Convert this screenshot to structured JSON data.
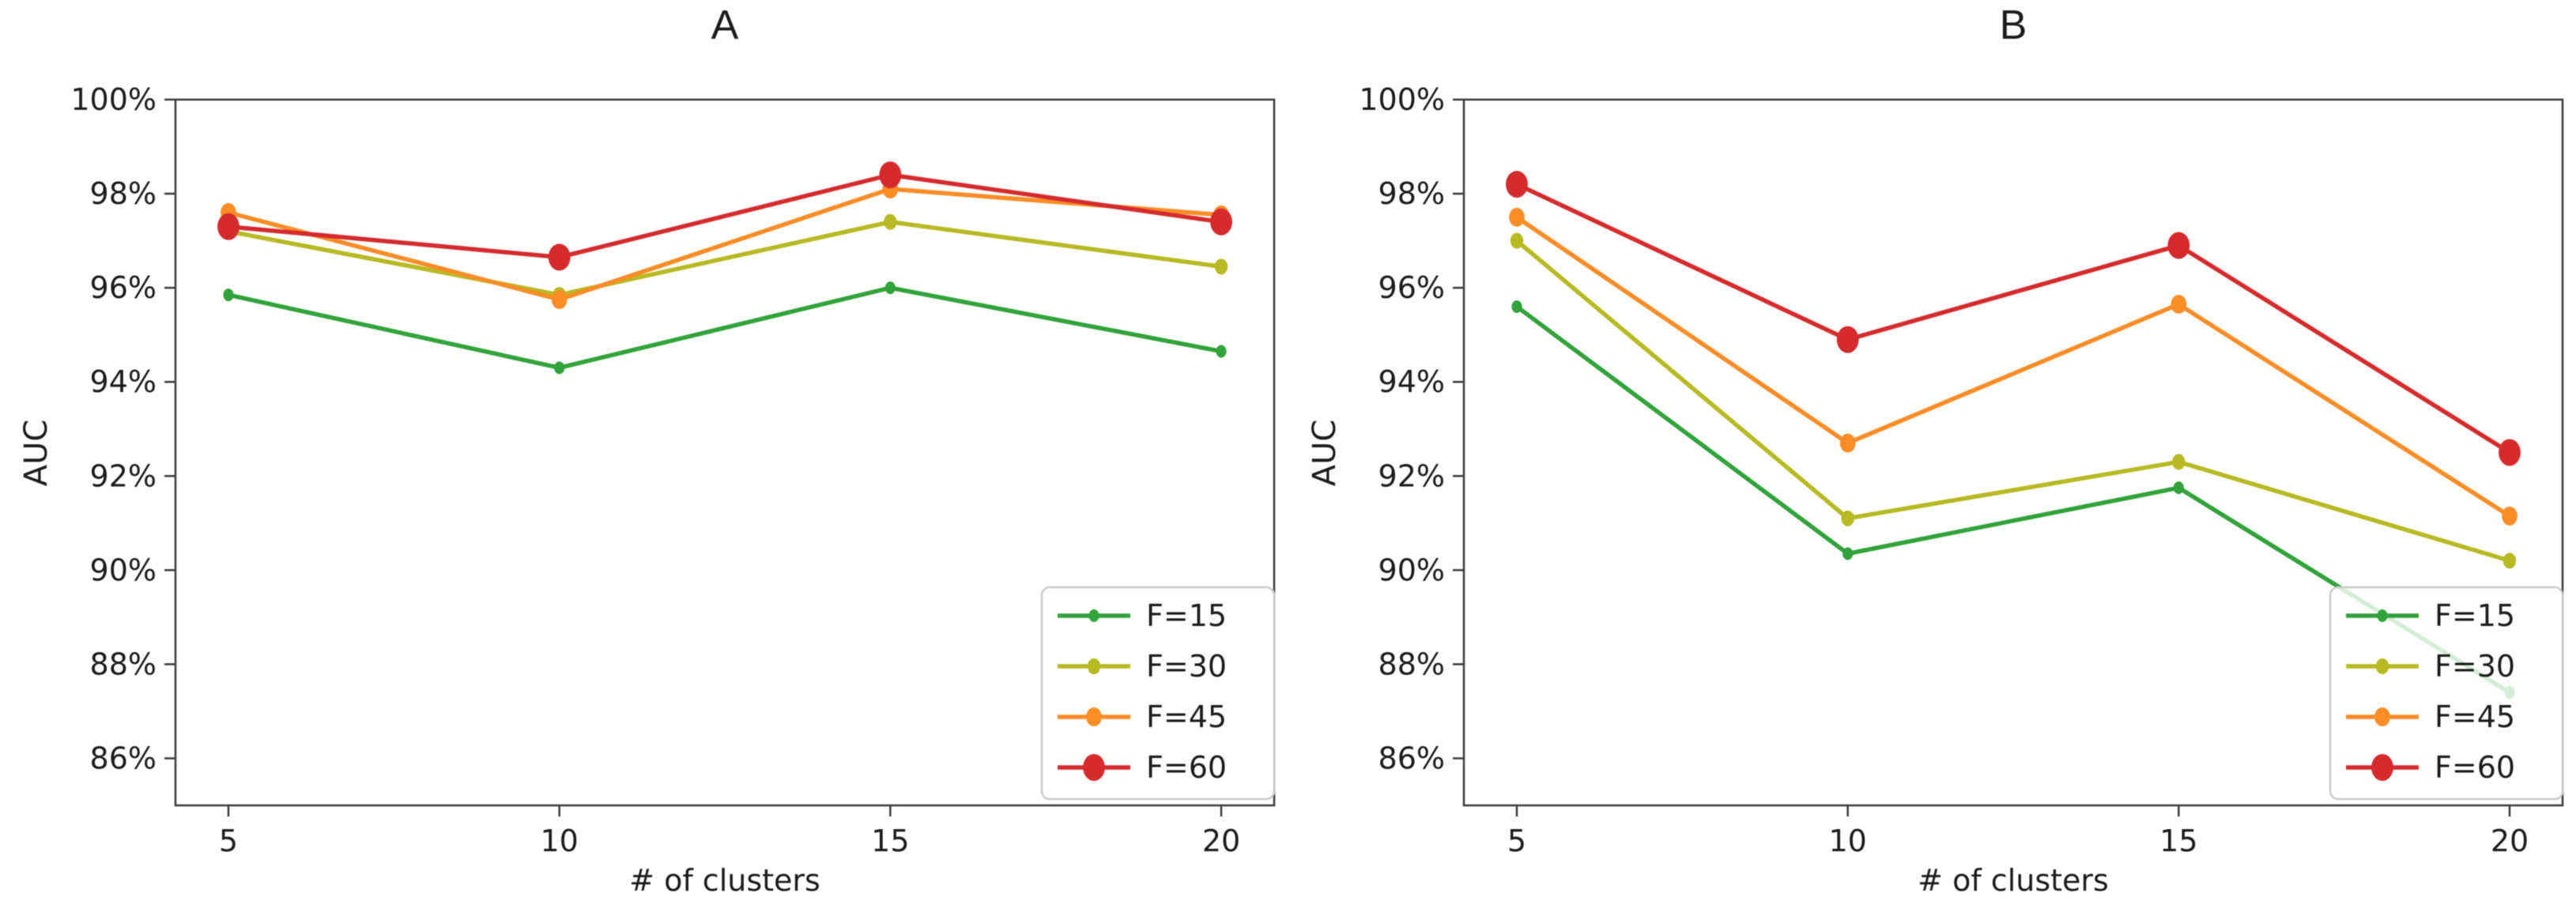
{
  "page": {
    "background": "#ffffff",
    "axis_color": "#3b3b3b",
    "text_color": "#1c1c1c",
    "legend_border_color": "#cccccc"
  },
  "chart_data": [
    {
      "type": "line",
      "title": "A",
      "xlabel": "# of clusters",
      "ylabel": "AUC",
      "x": [
        5,
        10,
        15,
        20
      ],
      "xticklabels": [
        "5",
        "10",
        "15",
        "20"
      ],
      "yticks": [
        86,
        88,
        90,
        92,
        94,
        96,
        98,
        100
      ],
      "yticklabels": [
        "86%",
        "88%",
        "90%",
        "92%",
        "94%",
        "96%",
        "98%",
        "100%"
      ],
      "xlim": [
        4.2,
        20.8
      ],
      "ylim": [
        85,
        100
      ],
      "grid": false,
      "legend_position": "lower right",
      "series": [
        {
          "name": "F=15",
          "color": "#31a33a",
          "marker_radius": 8,
          "values": [
            95.85,
            94.3,
            96.0,
            94.65
          ]
        },
        {
          "name": "F=30",
          "color": "#b7ba22",
          "marker_radius": 10,
          "values": [
            97.2,
            95.85,
            97.4,
            96.45
          ]
        },
        {
          "name": "F=45",
          "color": "#fb8c26",
          "marker_radius": 12,
          "values": [
            97.6,
            95.75,
            98.1,
            97.55
          ]
        },
        {
          "name": "F=60",
          "color": "#d62b2e",
          "marker_radius": 17,
          "values": [
            97.3,
            96.65,
            98.4,
            97.4
          ]
        }
      ]
    },
    {
      "type": "line",
      "title": "B",
      "xlabel": "# of clusters",
      "ylabel": "AUC",
      "x": [
        5,
        10,
        15,
        20
      ],
      "xticklabels": [
        "5",
        "10",
        "15",
        "20"
      ],
      "yticks": [
        86,
        88,
        90,
        92,
        94,
        96,
        98,
        100
      ],
      "yticklabels": [
        "86%",
        "88%",
        "90%",
        "92%",
        "94%",
        "96%",
        "98%",
        "100%"
      ],
      "xlim": [
        4.2,
        20.8
      ],
      "ylim": [
        85,
        100
      ],
      "grid": false,
      "legend_position": "lower right",
      "series": [
        {
          "name": "F=15",
          "color": "#31a33a",
          "marker_radius": 8,
          "values": [
            95.6,
            90.35,
            91.75,
            87.4
          ]
        },
        {
          "name": "F=30",
          "color": "#b7ba22",
          "marker_radius": 10,
          "values": [
            97.0,
            91.1,
            92.3,
            90.2
          ]
        },
        {
          "name": "F=45",
          "color": "#fb8c26",
          "marker_radius": 12,
          "values": [
            97.5,
            92.7,
            95.65,
            91.15
          ]
        },
        {
          "name": "F=60",
          "color": "#d62b2e",
          "marker_radius": 17,
          "values": [
            98.2,
            94.9,
            96.9,
            92.5
          ]
        }
      ]
    }
  ]
}
